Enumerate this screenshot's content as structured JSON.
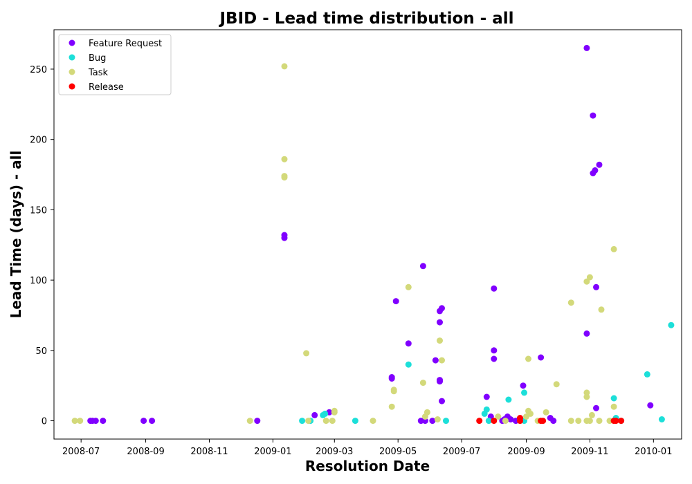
{
  "chart_data": {
    "type": "scatter",
    "title": "JBID - Lead time distribution - all",
    "xlabel": "Resolution Date",
    "ylabel": "Lead Time (days) - all",
    "x_axis": "date",
    "xlim": [
      "2008-06-05",
      "2010-01-28"
    ],
    "ylim": [
      -13,
      278
    ],
    "x_ticks": [
      "2008-07-01",
      "2008-09-01",
      "2008-11-01",
      "2009-01-01",
      "2009-03-01",
      "2009-05-01",
      "2009-07-01",
      "2009-09-01",
      "2009-11-01",
      "2010-01-01"
    ],
    "x_tick_labels": [
      "2008-07",
      "2008-09",
      "2008-11",
      "2009-01",
      "2009-03",
      "2009-05",
      "2009-07",
      "2009-09",
      "2009-11",
      "2010-01"
    ],
    "y_ticks": [
      0,
      50,
      100,
      150,
      200,
      250
    ],
    "grid": false,
    "legend_position": "upper-left",
    "series": [
      {
        "name": "Feature Request",
        "color": "#8000ff",
        "points": [
          [
            "2008-07-10",
            0
          ],
          [
            "2008-07-12",
            0
          ],
          [
            "2008-07-15",
            0
          ],
          [
            "2008-07-22",
            0
          ],
          [
            "2008-08-30",
            0
          ],
          [
            "2008-09-07",
            0
          ],
          [
            "2008-12-17",
            0
          ],
          [
            "2009-01-12",
            132
          ],
          [
            "2009-01-12",
            130
          ],
          [
            "2009-02-10",
            4
          ],
          [
            "2009-02-24",
            6
          ],
          [
            "2009-04-25",
            31
          ],
          [
            "2009-04-25",
            30
          ],
          [
            "2009-04-29",
            85
          ],
          [
            "2009-05-11",
            55
          ],
          [
            "2009-05-23",
            0
          ],
          [
            "2009-05-25",
            110
          ],
          [
            "2009-05-27",
            0
          ],
          [
            "2009-06-03",
            0
          ],
          [
            "2009-06-06",
            43
          ],
          [
            "2009-06-10",
            78
          ],
          [
            "2009-06-10",
            70
          ],
          [
            "2009-06-10",
            29
          ],
          [
            "2009-06-10",
            28
          ],
          [
            "2009-06-12",
            80
          ],
          [
            "2009-06-12",
            14
          ],
          [
            "2009-07-25",
            17
          ],
          [
            "2009-07-29",
            3
          ],
          [
            "2009-08-01",
            94
          ],
          [
            "2009-08-01",
            50
          ],
          [
            "2009-08-01",
            44
          ],
          [
            "2009-08-09",
            0
          ],
          [
            "2009-08-11",
            1
          ],
          [
            "2009-08-14",
            3
          ],
          [
            "2009-08-17",
            1
          ],
          [
            "2009-08-22",
            0
          ],
          [
            "2009-08-29",
            25
          ],
          [
            "2009-09-15",
            45
          ],
          [
            "2009-09-24",
            2
          ],
          [
            "2009-09-27",
            0
          ],
          [
            "2009-10-29",
            265
          ],
          [
            "2009-10-29",
            62
          ],
          [
            "2009-11-04",
            217
          ],
          [
            "2009-11-04",
            176
          ],
          [
            "2009-11-06",
            178
          ],
          [
            "2009-11-07",
            95
          ],
          [
            "2009-11-07",
            9
          ],
          [
            "2009-11-10",
            182
          ],
          [
            "2009-12-29",
            11
          ]
        ]
      },
      {
        "name": "Bug",
        "color": "#1cdfd9",
        "points": [
          [
            "2009-01-29",
            0
          ],
          [
            "2009-02-06",
            0
          ],
          [
            "2009-02-18",
            4
          ],
          [
            "2009-02-20",
            5
          ],
          [
            "2009-03-21",
            0
          ],
          [
            "2009-05-11",
            40
          ],
          [
            "2009-06-16",
            0
          ],
          [
            "2009-07-23",
            5
          ],
          [
            "2009-07-25",
            8
          ],
          [
            "2009-07-27",
            0
          ],
          [
            "2009-08-15",
            15
          ],
          [
            "2009-08-30",
            20
          ],
          [
            "2009-08-30",
            0
          ],
          [
            "2009-11-24",
            16
          ],
          [
            "2009-11-26",
            2
          ],
          [
            "2009-12-01",
            0
          ],
          [
            "2009-12-26",
            33
          ],
          [
            "2010-01-09",
            1
          ],
          [
            "2010-01-18",
            68
          ]
        ]
      },
      {
        "name": "Task",
        "color": "#d3d97a",
        "points": [
          [
            "2008-06-25",
            0
          ],
          [
            "2008-06-30",
            0
          ],
          [
            "2008-12-10",
            0
          ],
          [
            "2009-01-12",
            252
          ],
          [
            "2009-01-12",
            186
          ],
          [
            "2009-01-12",
            174
          ],
          [
            "2009-01-12",
            173
          ],
          [
            "2009-02-02",
            48
          ],
          [
            "2009-02-04",
            0
          ],
          [
            "2009-02-21",
            0
          ],
          [
            "2009-02-27",
            0
          ],
          [
            "2009-03-01",
            7
          ],
          [
            "2009-03-01",
            6
          ],
          [
            "2009-04-07",
            0
          ],
          [
            "2009-04-25",
            10
          ],
          [
            "2009-04-27",
            22
          ],
          [
            "2009-04-27",
            21
          ],
          [
            "2009-05-11",
            95
          ],
          [
            "2009-05-25",
            27
          ],
          [
            "2009-05-27",
            3
          ],
          [
            "2009-05-29",
            6
          ],
          [
            "2009-06-08",
            1
          ],
          [
            "2009-06-10",
            57
          ],
          [
            "2009-06-12",
            43
          ],
          [
            "2009-08-05",
            3
          ],
          [
            "2009-08-12",
            0
          ],
          [
            "2009-08-26",
            0
          ],
          [
            "2009-09-01",
            3
          ],
          [
            "2009-09-03",
            7
          ],
          [
            "2009-09-03",
            44
          ],
          [
            "2009-09-05",
            5
          ],
          [
            "2009-09-12",
            0
          ],
          [
            "2009-09-20",
            6
          ],
          [
            "2009-09-30",
            26
          ],
          [
            "2009-10-14",
            84
          ],
          [
            "2009-10-14",
            0
          ],
          [
            "2009-10-21",
            0
          ],
          [
            "2009-10-29",
            0
          ],
          [
            "2009-10-29",
            20
          ],
          [
            "2009-10-29",
            17
          ],
          [
            "2009-10-29",
            99
          ],
          [
            "2009-11-01",
            102
          ],
          [
            "2009-11-01",
            0
          ],
          [
            "2009-11-03",
            4
          ],
          [
            "2009-11-10",
            0
          ],
          [
            "2009-11-12",
            79
          ],
          [
            "2009-11-20",
            0
          ],
          [
            "2009-11-24",
            10
          ],
          [
            "2009-11-24",
            122
          ]
        ]
      },
      {
        "name": "Release",
        "color": "#ff0000",
        "points": [
          [
            "2009-07-18",
            0
          ],
          [
            "2009-08-01",
            0
          ],
          [
            "2009-08-26",
            2
          ],
          [
            "2009-08-26",
            0
          ],
          [
            "2009-09-15",
            0
          ],
          [
            "2009-09-17",
            0
          ],
          [
            "2009-11-24",
            0
          ],
          [
            "2009-11-26",
            0
          ],
          [
            "2009-12-01",
            0
          ]
        ]
      }
    ]
  }
}
